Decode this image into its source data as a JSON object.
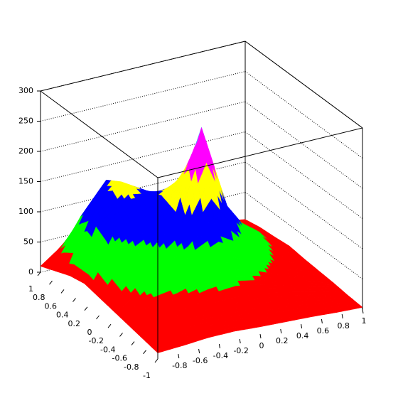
{
  "chart_data": {
    "type": "surface",
    "x": [
      -1,
      -0.75,
      -0.5,
      -0.25,
      0,
      0.25,
      0.5,
      0.75,
      1
    ],
    "y": [
      -1,
      -0.75,
      -0.5,
      -0.25,
      0,
      0.25,
      0.5,
      0.75,
      1
    ],
    "z": [
      [
        10,
        12,
        15,
        15,
        12,
        10,
        8,
        5,
        3
      ],
      [
        15,
        25,
        30,
        30,
        28,
        25,
        20,
        12,
        5
      ],
      [
        20,
        40,
        45,
        55,
        60,
        50,
        35,
        20,
        8
      ],
      [
        25,
        60,
        70,
        90,
        110,
        85,
        55,
        30,
        10
      ],
      [
        30,
        80,
        100,
        140,
        270,
        130,
        70,
        40,
        12
      ],
      [
        35,
        110,
        140,
        150,
        180,
        120,
        75,
        45,
        15
      ],
      [
        30,
        130,
        165,
        140,
        120,
        100,
        70,
        40,
        12
      ],
      [
        20,
        100,
        150,
        110,
        90,
        75,
        50,
        30,
        10
      ],
      [
        10,
        40,
        50,
        45,
        40,
        30,
        20,
        12,
        5
      ]
    ],
    "xlim": [
      -1,
      1
    ],
    "ylim": [
      -1,
      1
    ],
    "zlim": [
      0,
      300
    ],
    "xticks": [
      -0.8,
      -0.6,
      -0.4,
      -0.2,
      0,
      0.2,
      0.4,
      0.6,
      0.8,
      1
    ],
    "yticks": [
      -1,
      -0.8,
      -0.6,
      -0.4,
      -0.2,
      0,
      0.2,
      0.4,
      0.6,
      0.8,
      1
    ],
    "zticks": [
      0,
      50,
      100,
      150,
      200,
      250,
      300
    ],
    "grid": true,
    "color_levels": [
      0,
      50,
      100,
      150,
      200,
      250
    ],
    "colors": [
      "#ff0000",
      "#00ff00",
      "#0000ff",
      "#ffff00",
      "#ff00ff",
      "#00ffff"
    ]
  }
}
